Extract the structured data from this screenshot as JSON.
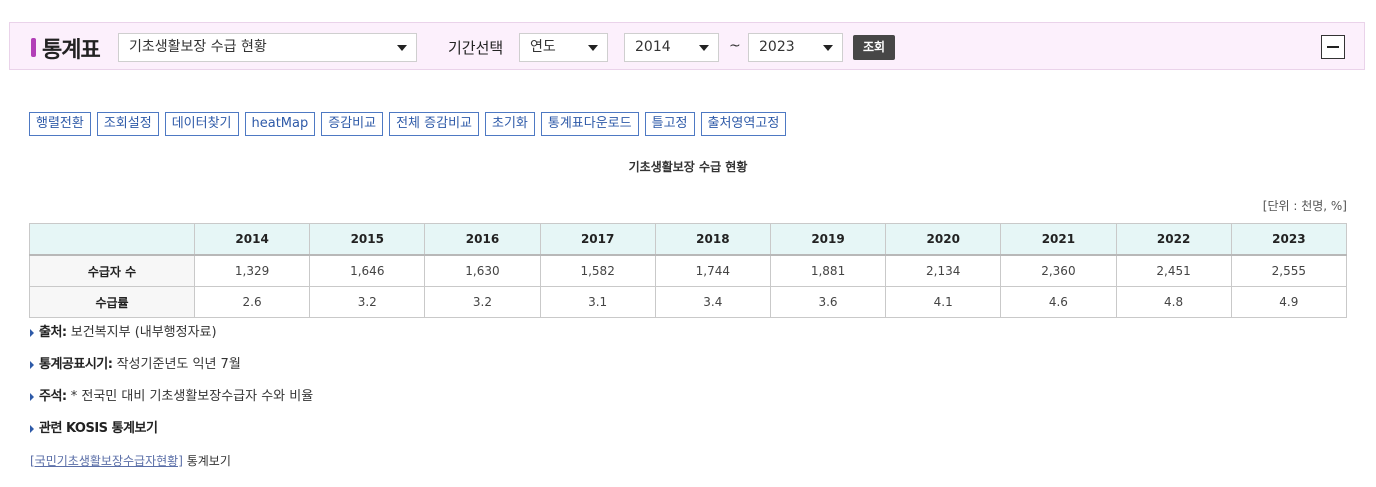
{
  "header": {
    "title": "통계표",
    "table_select": "기초생활보장 수급 현황",
    "period_label": "기간선택",
    "period_type": "연도",
    "start_year": "2014",
    "tilde": "~",
    "end_year": "2023",
    "query_button": "조회"
  },
  "toolbar": [
    "행렬전환",
    "조회설정",
    "데이터찾기",
    "heatMap",
    "증감비교",
    "전체 증감비교",
    "초기화",
    "통계표다운로드",
    "틀고정",
    "출처영역고정"
  ],
  "table": {
    "caption": "기초생활보장 수급 현황",
    "unit": "[단위 : 천명, %]",
    "years": [
      "2014",
      "2015",
      "2016",
      "2017",
      "2018",
      "2019",
      "2020",
      "2021",
      "2022",
      "2023"
    ],
    "rows": [
      {
        "label": "수급자 수",
        "values": [
          "1,329",
          "1,646",
          "1,630",
          "1,582",
          "1,744",
          "1,881",
          "2,134",
          "2,360",
          "2,451",
          "2,555"
        ]
      },
      {
        "label": "수급률",
        "values": [
          "2.6",
          "3.2",
          "3.2",
          "3.1",
          "3.4",
          "3.6",
          "4.1",
          "4.6",
          "4.8",
          "4.9"
        ]
      }
    ]
  },
  "notes": {
    "source_label": "출처:",
    "source_value": " 보건복지부 (내부행정자료)",
    "publish_label": "통계공표시기:",
    "publish_value": " 작성기준년도 익년 7월",
    "remark_label": "주석:",
    "remark_value": " * 전국민 대비 기초생활보장수급자 수와 비율",
    "related_label": "관련 KOSIS 통계보기",
    "related_link": "[국민기초생활보장수급자현황]",
    "related_suffix": " 통계보기"
  }
}
